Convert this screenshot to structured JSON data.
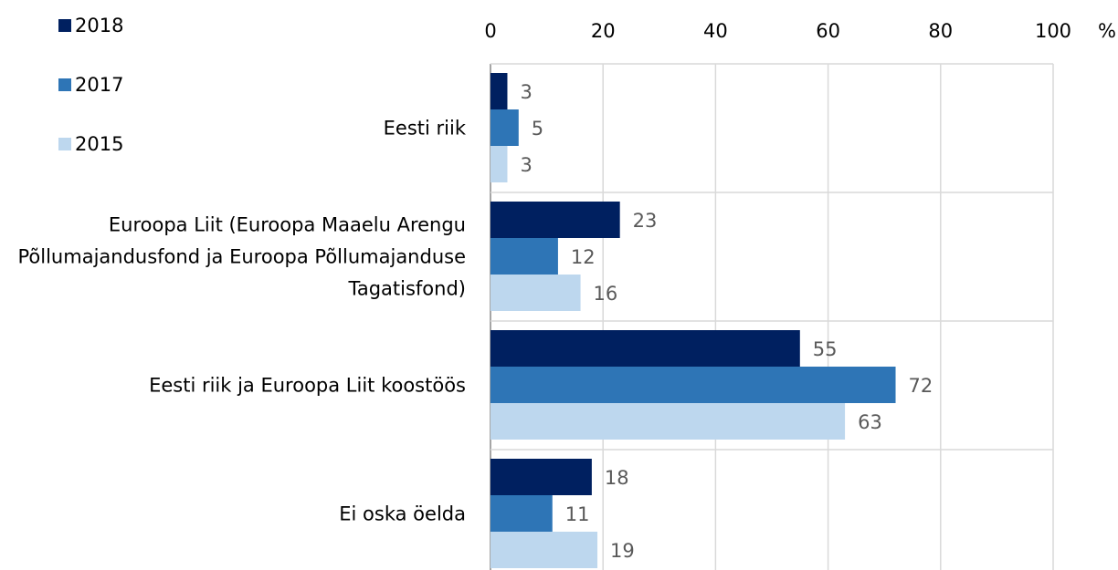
{
  "chart_data": {
    "type": "hbar",
    "categories": [
      "Eesti riik",
      "Euroopa Liit (Euroopa Maaelu Arengu Põllumajandusfond ja Euroopa Põllumajanduse Tagatisfond)",
      "Eesti riik ja Euroopa Liit koostöös",
      "Ei oska öelda"
    ],
    "series": [
      {
        "name": "2018",
        "color": "#002060",
        "values": [
          3,
          23,
          55,
          18
        ]
      },
      {
        "name": "2017",
        "color": "#2e75b6",
        "values": [
          5,
          12,
          72,
          11
        ]
      },
      {
        "name": "2015",
        "color": "#bdd7ee",
        "values": [
          3,
          16,
          63,
          19
        ]
      }
    ],
    "xlim": [
      0,
      100
    ],
    "xticks": [
      0,
      20,
      40,
      60,
      80,
      100
    ],
    "x_unit": "%",
    "grid": true,
    "legend": "top-left"
  }
}
